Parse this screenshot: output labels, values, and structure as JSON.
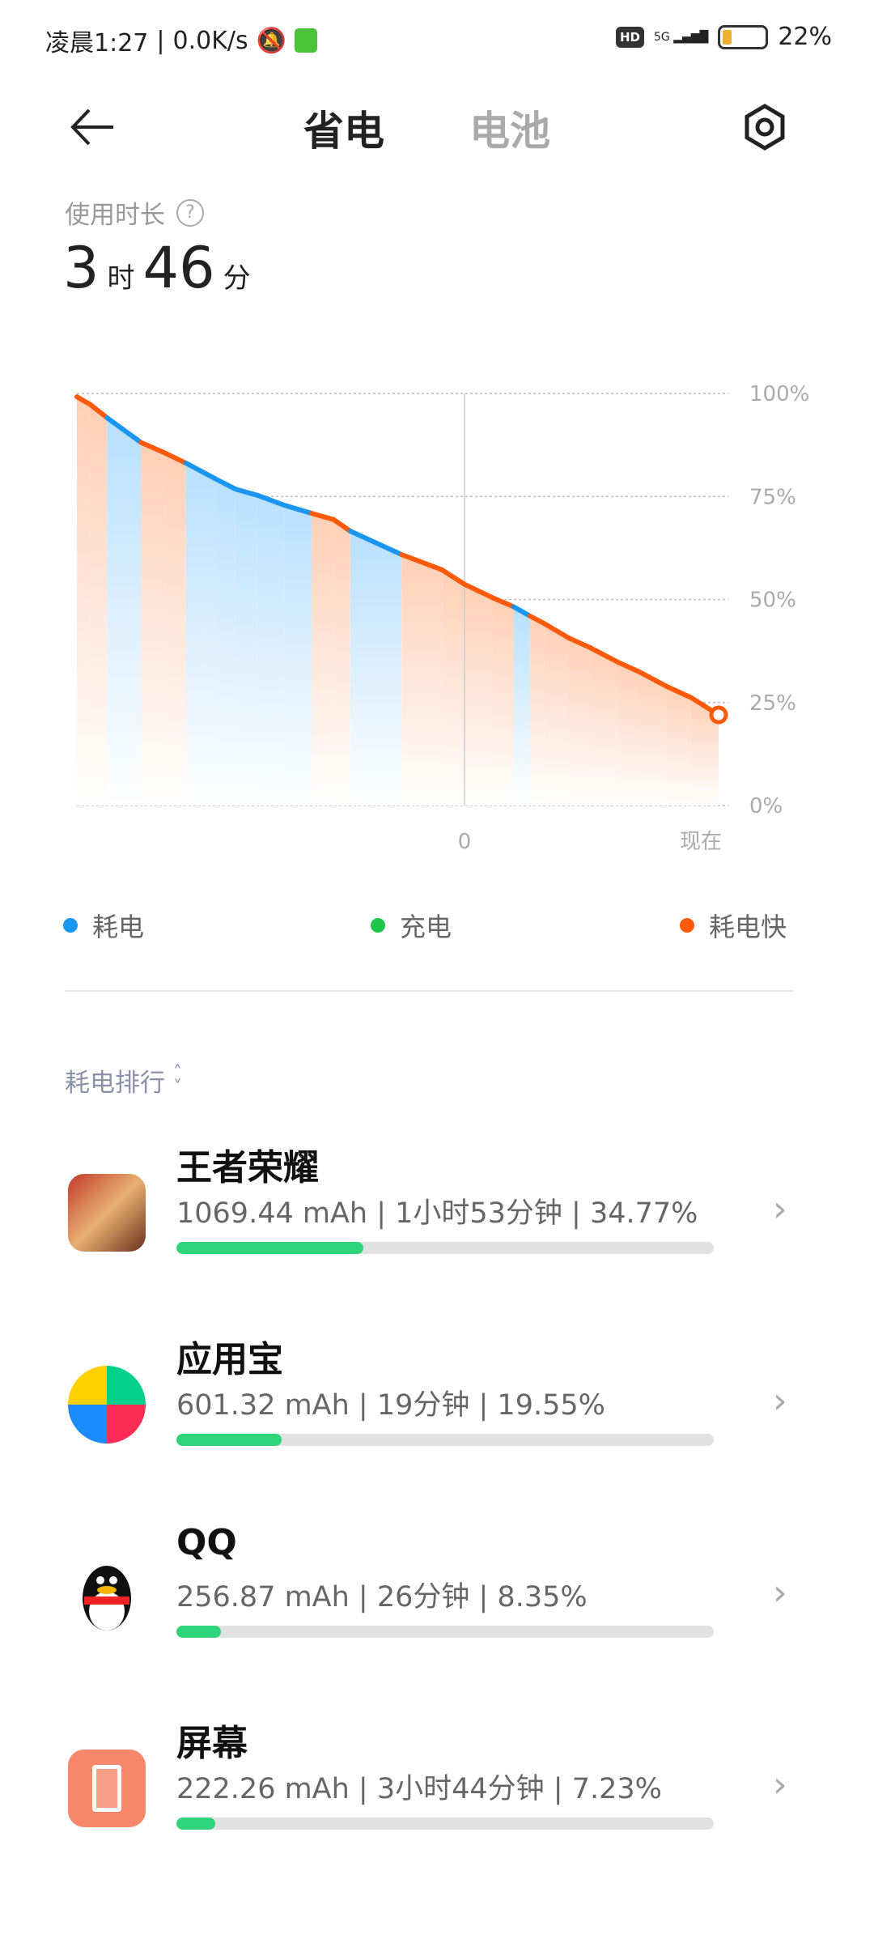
{
  "status_bar": {
    "time": "凌晨1:27",
    "speed": "0.0K/s",
    "network": "5G",
    "hd": "HD",
    "battery": "22%",
    "battery_level": 22
  },
  "header": {
    "tabs": [
      {
        "label": "省电",
        "active": true
      },
      {
        "label": "电池",
        "active": false
      }
    ]
  },
  "usage": {
    "label": "使用时长",
    "hours": "3",
    "hours_unit": "时",
    "minutes": "46",
    "minutes_unit": "分"
  },
  "chart_data": {
    "type": "line",
    "y_ticks": [
      "100%",
      "75%",
      "50%",
      "25%",
      "0%"
    ],
    "ylim": [
      0,
      100
    ],
    "x_labels": [
      {
        "t": 0.604,
        "label": "0"
      },
      {
        "t": 1.0,
        "label": "现在"
      }
    ],
    "grid": true,
    "colors": {
      "耗电": "#1a96f0",
      "充电": "#1ec74a",
      "耗电快": "#ff5a0a"
    },
    "points": [
      [
        0,
        99.2,
        "fast"
      ],
      [
        0.021,
        97.3,
        "fast"
      ],
      [
        0.047,
        94.1,
        "fast"
      ],
      [
        0.1,
        88.1,
        "drain"
      ],
      [
        0.138,
        85.5,
        "fast"
      ],
      [
        0.17,
        83.1,
        "fast"
      ],
      [
        0.217,
        79.2,
        "drain"
      ],
      [
        0.247,
        76.8,
        "drain"
      ],
      [
        0.281,
        75.3,
        "drain"
      ],
      [
        0.323,
        72.9,
        "drain"
      ],
      [
        0.366,
        70.9,
        "drain"
      ],
      [
        0.4,
        69.4,
        "fast"
      ],
      [
        0.426,
        66.6,
        "fast"
      ],
      [
        0.506,
        60.9,
        "drain"
      ],
      [
        0.569,
        57.2,
        "fast"
      ],
      [
        0.604,
        53.7,
        "fast"
      ],
      [
        0.647,
        50.5,
        "fast"
      ],
      [
        0.681,
        48.2,
        "fast"
      ],
      [
        0.706,
        46.0,
        "drain"
      ],
      [
        0.728,
        44.2,
        "fast"
      ],
      [
        0.766,
        40.7,
        "fast"
      ],
      [
        0.8,
        38.3,
        "fast"
      ],
      [
        0.843,
        34.8,
        "fast"
      ],
      [
        0.877,
        32.4,
        "fast"
      ],
      [
        0.919,
        28.9,
        "fast"
      ],
      [
        0.957,
        26.2,
        "fast"
      ],
      [
        1.0,
        22.0,
        "fast"
      ]
    ]
  },
  "legend": [
    {
      "label": "耗电",
      "color": "#1a96f0"
    },
    {
      "label": "充电",
      "color": "#1ec74a"
    },
    {
      "label": "耗电快",
      "color": "#ff5a0a"
    }
  ],
  "ranking": {
    "label": "耗电排行",
    "items": [
      {
        "name": "王者荣耀",
        "detail": "1069.44 mAh | 1小时53分钟 | 34.77%",
        "percent": 34.77
      },
      {
        "name": "应用宝",
        "detail": "601.32 mAh | 19分钟 | 19.55%",
        "percent": 19.55
      },
      {
        "name": "QQ",
        "detail": "256.87 mAh | 26分钟 | 8.35%",
        "percent": 8.35
      },
      {
        "name": "屏幕",
        "detail": "222.26 mAh | 3小时44分钟 | 7.23%",
        "percent": 7.23
      }
    ]
  }
}
